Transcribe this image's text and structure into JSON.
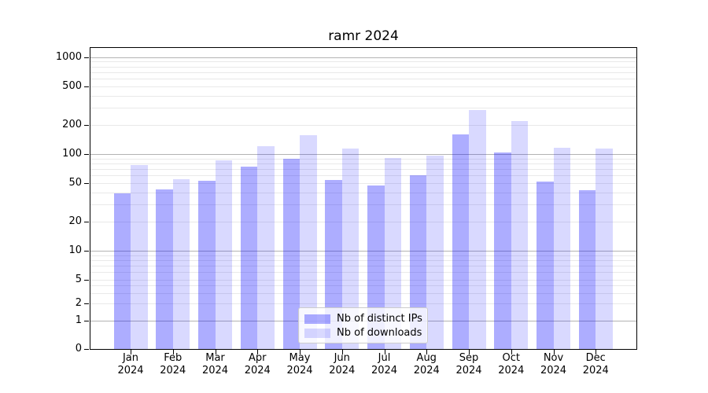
{
  "title": "ramr 2024",
  "chart_data": {
    "type": "bar",
    "title": "ramr 2024",
    "months": [
      "Jan",
      "Feb",
      "Mar",
      "Apr",
      "May",
      "Jun",
      "Jul",
      "Aug",
      "Sep",
      "Oct",
      "Nov",
      "Dec"
    ],
    "year": "2024",
    "categories": [
      "Jan 2024",
      "Feb 2024",
      "Mar 2024",
      "Apr 2024",
      "May 2024",
      "Jun 2024",
      "Jul 2024",
      "Aug 2024",
      "Sep 2024",
      "Oct 2024",
      "Nov 2024",
      "Dec 2024"
    ],
    "series": [
      {
        "name": "Nb of distinct IPs",
        "color": "rgba(0,0,255,0.32)",
        "key": "distinct-ips",
        "values": [
          39,
          43,
          53,
          74,
          89,
          54,
          47,
          60,
          160,
          103,
          52,
          42
        ]
      },
      {
        "name": "Nb of downloads",
        "color": "rgba(0,0,255,0.15)",
        "key": "downloads",
        "values": [
          77,
          55,
          86,
          121,
          158,
          113,
          91,
          96,
          285,
          219,
          116,
          113
        ]
      }
    ],
    "yscale": "symlog",
    "y_ticks": [
      0,
      1,
      2,
      5,
      10,
      20,
      50,
      100,
      200,
      500,
      1000
    ],
    "ylim": [
      0,
      1200
    ],
    "grid": true,
    "grid_major_color": "#b3b3b3",
    "grid_minor_color": "#e9e9e9",
    "axis_color": "#000000",
    "legend_position": "lower center"
  }
}
